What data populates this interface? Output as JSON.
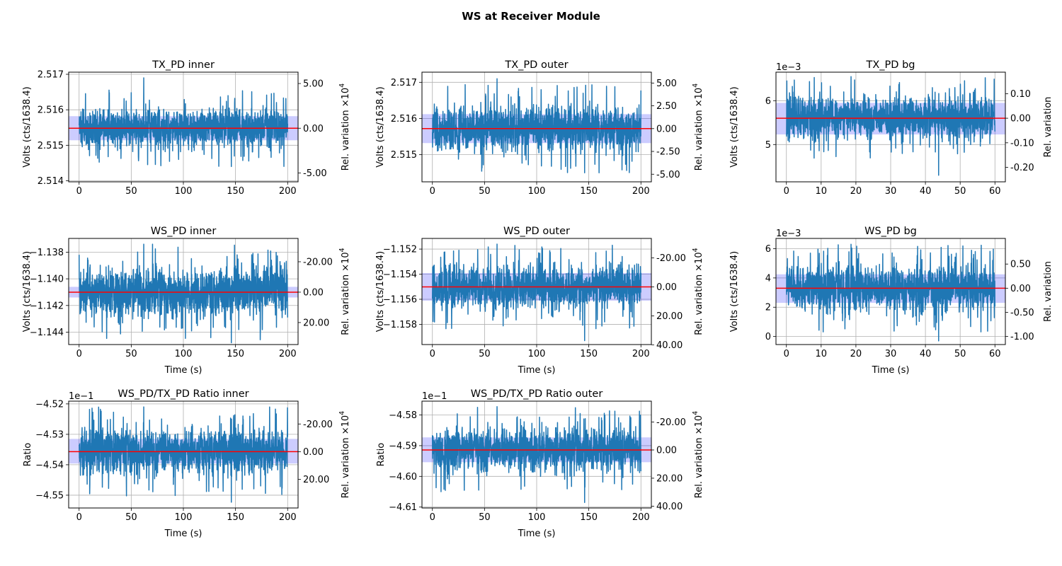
{
  "figure": {
    "title": "WS at Receiver Module"
  },
  "colors": {
    "trace": "#1f77b4",
    "mean": "#ff0000",
    "band": "#0000ff",
    "grid": "#b0b0b0"
  },
  "chart_data": [
    {
      "type": "line",
      "title": "TX_PD inner",
      "xlabel": "",
      "ylabel": "Volts (cts/1638.4)",
      "ylabel_right": "Rel. variation ×10",
      "right_exponent": "4",
      "offset_text": "",
      "x_range": [
        0,
        200
      ],
      "xlim": [
        -10,
        210
      ],
      "xticks": [
        0,
        50,
        100,
        150,
        200
      ],
      "ylim": [
        2.51397,
        2.51706
      ],
      "yticks": [
        2.514,
        2.515,
        2.516,
        2.517
      ],
      "ytick_labels": [
        "2.514",
        "2.515",
        "2.516",
        "2.517"
      ],
      "mean": 2.51548,
      "band": [
        2.51514,
        2.51582
      ],
      "y_range_trace": [
        2.5144,
        2.5169
      ],
      "right_ticks": [
        {
          "v": 2.51674,
          "label": "5.00"
        },
        {
          "v": 2.51548,
          "label": "0.00"
        },
        {
          "v": 2.51422,
          "label": "-5.00"
        }
      ]
    },
    {
      "type": "line",
      "title": "TX_PD outer",
      "xlabel": "",
      "ylabel": "Volts (cts/1638.4)",
      "ylabel_right": "Rel. variation ×10",
      "right_exponent": "4",
      "offset_text": "",
      "x_range": [
        0,
        200
      ],
      "xlim": [
        -10,
        210
      ],
      "xticks": [
        0,
        50,
        100,
        150,
        200
      ],
      "ylim": [
        2.51425,
        2.51728
      ],
      "yticks": [
        2.515,
        2.516,
        2.517
      ],
      "ytick_labels": [
        "2.515",
        "2.516",
        "2.517"
      ],
      "mean": 2.51572,
      "band": [
        2.51532,
        2.51612
      ],
      "y_range_trace": [
        2.5145,
        2.5171
      ],
      "right_ticks": [
        {
          "v": 2.51698,
          "label": "5.00"
        },
        {
          "v": 2.51635,
          "label": "2.50"
        },
        {
          "v": 2.51572,
          "label": "0.00"
        },
        {
          "v": 2.51509,
          "label": "-2.50"
        },
        {
          "v": 2.51446,
          "label": "-5.00"
        }
      ]
    },
    {
      "type": "line",
      "title": "TX_PD bg",
      "xlabel": "",
      "ylabel": "Volts (cts/1638.4)",
      "ylabel_right": "Rel. variation",
      "right_exponent": "",
      "offset_text": "1e−3",
      "x_range": [
        0,
        60
      ],
      "xlim": [
        -3,
        63
      ],
      "xticks": [
        0,
        10,
        20,
        30,
        40,
        50,
        60
      ],
      "ylim": [
        4.15,
        6.65
      ],
      "yticks": [
        5,
        6
      ],
      "ytick_labels": [
        "5",
        "6"
      ],
      "mean": 5.6,
      "band": [
        5.23,
        5.95
      ],
      "y_range_trace": [
        4.3,
        6.55
      ],
      "right_ticks": [
        {
          "v": 6.16,
          "label": "0.10"
        },
        {
          "v": 5.6,
          "label": "0.00"
        },
        {
          "v": 5.04,
          "label": "-0.10"
        },
        {
          "v": 4.48,
          "label": "-0.20"
        }
      ]
    },
    {
      "type": "line",
      "title": "WS_PD inner",
      "xlabel": "Time (s)",
      "ylabel": "Volts (cts/1638.4)",
      "ylabel_right": "Rel. variation ×10",
      "right_exponent": "4",
      "offset_text": "",
      "x_range": [
        0,
        200
      ],
      "xlim": [
        -10,
        210
      ],
      "xticks": [
        0,
        50,
        100,
        150,
        200
      ],
      "ylim": [
        -1.14493,
        -1.13697
      ],
      "yticks": [
        -1.138,
        -1.14,
        -1.142,
        -1.144
      ],
      "ytick_labels": [
        "−1.138",
        "−1.140",
        "−1.142",
        "−1.144"
      ],
      "mean": -1.141,
      "band": [
        -1.1414,
        -1.1406
      ],
      "y_range_trace": [
        -1.1448,
        -1.1374
      ],
      "right_ticks": [
        {
          "v": -1.13872,
          "label": "-20.00"
        },
        {
          "v": -1.141,
          "label": "0.00"
        },
        {
          "v": -1.14328,
          "label": "20.00"
        }
      ]
    },
    {
      "type": "line",
      "title": "WS_PD outer",
      "xlabel": "Time (s)",
      "ylabel": "Volts (cts/1638.4)",
      "ylabel_right": "Rel. variation ×10",
      "right_exponent": "4",
      "offset_text": "",
      "x_range": [
        0,
        200
      ],
      "xlim": [
        -10,
        210
      ],
      "xticks": [
        0,
        50,
        100,
        150,
        200
      ],
      "ylim": [
        -1.15961,
        -1.15115
      ],
      "yticks": [
        -1.152,
        -1.154,
        -1.156,
        -1.158
      ],
      "ytick_labels": [
        "−1.152",
        "−1.154",
        "−1.156",
        "−1.158"
      ],
      "mean": -1.15501,
      "band": [
        -1.15611,
        -1.15391
      ],
      "y_range_trace": [
        -1.1593,
        -1.1516
      ],
      "right_ticks": [
        {
          "v": -1.1527,
          "label": "-20.00"
        },
        {
          "v": -1.15501,
          "label": "0.00"
        },
        {
          "v": -1.15732,
          "label": "20.00"
        },
        {
          "v": -1.15963,
          "label": "40.00"
        }
      ]
    },
    {
      "type": "line",
      "title": "WS_PD bg",
      "xlabel": "Time (s)",
      "ylabel": "Volts (cts/1638.4)",
      "ylabel_right": "Rel. variation",
      "right_exponent": "",
      "offset_text": "1e−3",
      "x_range": [
        0,
        60
      ],
      "xlim": [
        -3,
        63
      ],
      "xticks": [
        0,
        10,
        20,
        30,
        40,
        50,
        60
      ],
      "ylim": [
        -0.55,
        6.7
      ],
      "yticks": [
        0,
        2,
        4,
        6
      ],
      "ytick_labels": [
        "0",
        "2",
        "4",
        "6"
      ],
      "mean": 3.3,
      "band": [
        2.3,
        4.25
      ],
      "y_range_trace": [
        -0.3,
        6.3
      ],
      "right_ticks": [
        {
          "v": 4.95,
          "label": "0.50"
        },
        {
          "v": 3.3,
          "label": "0.00"
        },
        {
          "v": 1.65,
          "label": "-0.50"
        },
        {
          "v": 0.0,
          "label": "-1.00"
        }
      ]
    },
    {
      "type": "line",
      "title": "WS_PD/TX_PD Ratio inner",
      "xlabel": "Time (s)",
      "ylabel": "Ratio",
      "ylabel_right": "Rel. variation ×10",
      "right_exponent": "4",
      "offset_text": "1e−1",
      "x_range": [
        0,
        200
      ],
      "xlim": [
        -10,
        210
      ],
      "xticks": [
        0,
        50,
        100,
        150,
        200
      ],
      "ylim": [
        -4.5542,
        -4.5191
      ],
      "yticks": [
        -4.52,
        -4.53,
        -4.54,
        -4.55
      ],
      "ytick_labels": [
        "−4.52",
        "−4.53",
        "−4.54",
        "−4.55"
      ],
      "mean": -4.5357,
      "band": [
        -4.5396,
        -4.5315
      ],
      "y_range_trace": [
        -4.5523,
        -4.521
      ],
      "right_ticks": [
        {
          "v": -4.5266,
          "label": "-20.00"
        },
        {
          "v": -4.5357,
          "label": "0.00"
        },
        {
          "v": -4.5448,
          "label": "20.00"
        }
      ]
    },
    {
      "type": "line",
      "title": "WS_PD/TX_PD Ratio outer",
      "xlabel": "Time (s)",
      "ylabel": "Ratio",
      "ylabel_right": "Rel. variation ×10",
      "right_exponent": "4",
      "offset_text": "1e−1",
      "x_range": [
        0,
        200
      ],
      "xlim": [
        -10,
        210
      ],
      "xticks": [
        0,
        50,
        100,
        150,
        200
      ],
      "ylim": [
        -4.6103,
        -4.5755
      ],
      "yticks": [
        -4.58,
        -4.59,
        -4.6,
        -4.61
      ],
      "ytick_labels": [
        "−4.58",
        "−4.59",
        "−4.60",
        "−4.61"
      ],
      "mean": -4.5914,
      "band": [
        -4.5954,
        -4.5873
      ],
      "y_range_trace": [
        -4.6085,
        -4.5773
      ],
      "right_ticks": [
        {
          "v": -4.5823,
          "label": "-20.00"
        },
        {
          "v": -4.5914,
          "label": "0.00"
        },
        {
          "v": -4.6006,
          "label": "20.00"
        },
        {
          "v": -4.6097,
          "label": "40.00"
        }
      ]
    }
  ]
}
